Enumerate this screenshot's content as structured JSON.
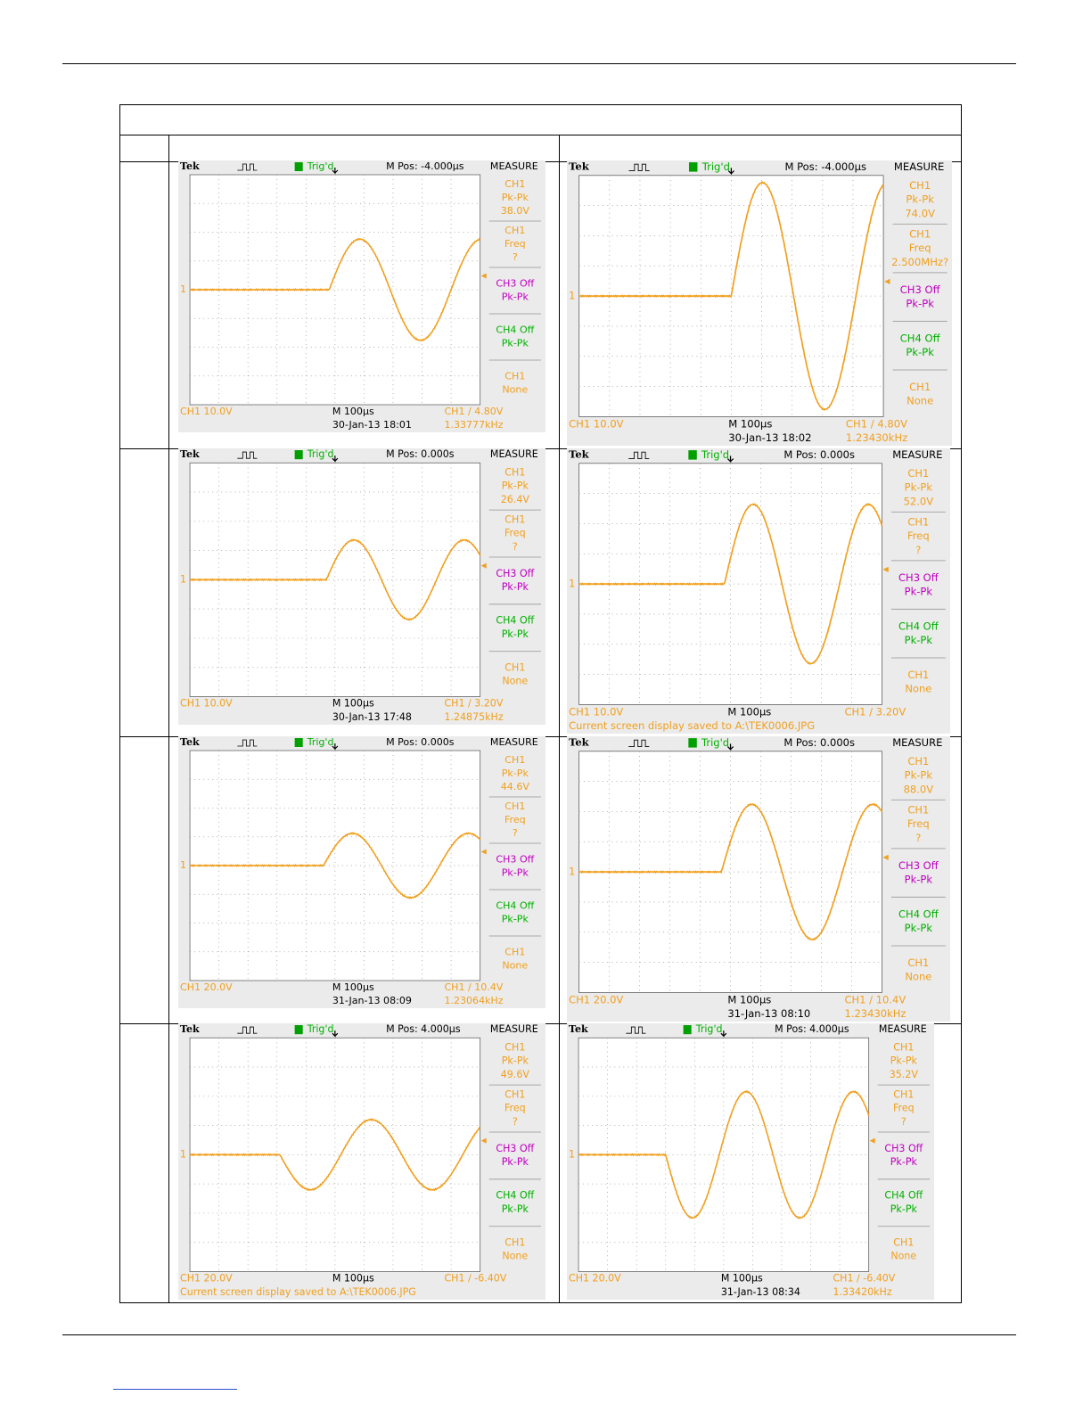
{
  "scopes": [
    {
      "brand": "Tek",
      "trigger": "Trig'd",
      "mpos": "M Pos: -4.000µs",
      "measure_title": "MEASURE",
      "marker": "1",
      "measurements": [
        [
          "CH1",
          "Pk-Pk",
          "38.0V"
        ],
        [
          "CH1",
          "Freq",
          "?"
        ],
        [
          "CH3 Off",
          "Pk-Pk"
        ],
        [
          "CH4 Off",
          "Pk-Pk"
        ],
        [
          "CH1",
          "None"
        ]
      ],
      "ch_scale": "CH1  10.0V",
      "timebase": "M 100µs",
      "trigger_level": "CH1 ∕ 4.80V",
      "date": "30-Jan-13 18:01",
      "freq": "1.33777kHz"
    },
    {
      "brand": "Tek",
      "trigger": "Trig'd",
      "mpos": "M Pos: -4.000µs",
      "measure_title": "MEASURE",
      "marker": "1",
      "measurements": [
        [
          "CH1",
          "Pk-Pk",
          "74.0V"
        ],
        [
          "CH1",
          "Freq",
          "2.500MHz?"
        ],
        [
          "CH3 Off",
          "Pk-Pk"
        ],
        [
          "CH4 Off",
          "Pk-Pk"
        ],
        [
          "CH1",
          "None"
        ]
      ],
      "ch_scale": "CH1  10.0V",
      "timebase": "M 100µs",
      "trigger_level": "CH1 ∕ 4.80V",
      "date": "30-Jan-13 18:02",
      "freq": "1.23430kHz"
    },
    {
      "brand": "Tek",
      "trigger": "Trig'd",
      "mpos": "M Pos: 0.000s",
      "measure_title": "MEASURE",
      "marker": "1",
      "measurements": [
        [
          "CH1",
          "Pk-Pk",
          "26.4V"
        ],
        [
          "CH1",
          "Freq",
          "?"
        ],
        [
          "CH3 Off",
          "Pk-Pk"
        ],
        [
          "CH4 Off",
          "Pk-Pk"
        ],
        [
          "CH1",
          "None"
        ]
      ],
      "ch_scale": "CH1  10.0V",
      "timebase": "M 100µs",
      "trigger_level": "CH1 ∕ 3.20V",
      "date": "30-Jan-13 17:48",
      "freq": "1.24875kHz"
    },
    {
      "brand": "Tek",
      "trigger": "Trig'd",
      "mpos": "M Pos: 0.000s",
      "measure_title": "MEASURE",
      "marker": "1",
      "measurements": [
        [
          "CH1",
          "Pk-Pk",
          "52.0V"
        ],
        [
          "CH1",
          "Freq",
          "?"
        ],
        [
          "CH3 Off",
          "Pk-Pk"
        ],
        [
          "CH4 Off",
          "Pk-Pk"
        ],
        [
          "CH1",
          "None"
        ]
      ],
      "ch_scale": "CH1  10.0V",
      "timebase": "M 100µs",
      "trigger_level": "CH1 ∕ 3.20V",
      "message": "Current screen display saved to A:\\TEK0006.JPG"
    },
    {
      "brand": "Tek",
      "trigger": "Trig'd",
      "mpos": "M Pos: 0.000s",
      "measure_title": "MEASURE",
      "marker": "1",
      "measurements": [
        [
          "CH1",
          "Pk-Pk",
          "44.6V"
        ],
        [
          "CH1",
          "Freq",
          "?"
        ],
        [
          "CH3 Off",
          "Pk-Pk"
        ],
        [
          "CH4 Off",
          "Pk-Pk"
        ],
        [
          "CH1",
          "None"
        ]
      ],
      "ch_scale": "CH1  20.0V",
      "timebase": "M 100µs",
      "trigger_level": "CH1 ∕ 10.4V",
      "date": "31-Jan-13 08:09",
      "freq": "1.23064kHz"
    },
    {
      "brand": "Tek",
      "trigger": "Trig'd",
      "mpos": "M Pos: 0.000s",
      "measure_title": "MEASURE",
      "marker": "1",
      "measurements": [
        [
          "CH1",
          "Pk-Pk",
          "88.0V"
        ],
        [
          "CH1",
          "Freq",
          "?"
        ],
        [
          "CH3 Off",
          "Pk-Pk"
        ],
        [
          "CH4 Off",
          "Pk-Pk"
        ],
        [
          "CH1",
          "None"
        ]
      ],
      "ch_scale": "CH1  20.0V",
      "timebase": "M 100µs",
      "trigger_level": "CH1 ∕ 10.4V",
      "date": "31-Jan-13 08:10",
      "freq": "1.23430kHz"
    },
    {
      "brand": "Tek",
      "trigger": "Trig'd",
      "mpos": "M Pos: 4.000µs",
      "measure_title": "MEASURE",
      "marker": "1",
      "measurements": [
        [
          "CH1",
          "Pk-Pk",
          "49.6V"
        ],
        [
          "CH1",
          "Freq",
          "?"
        ],
        [
          "CH3 Off",
          "Pk-Pk"
        ],
        [
          "CH4 Off",
          "Pk-Pk"
        ],
        [
          "CH1",
          "None"
        ]
      ],
      "ch_scale": "CH1  20.0V",
      "timebase": "M 100µs",
      "trigger_level": "CH1 ∕ -6.40V",
      "message": "Current screen display saved to A:\\TEK0006.JPG"
    },
    {
      "brand": "Tek",
      "trigger": "Trig'd",
      "mpos": "M Pos: 4.000µs",
      "measure_title": "MEASURE",
      "marker": "1",
      "measurements": [
        [
          "CH1",
          "Pk-Pk",
          "35.2V"
        ],
        [
          "CH1",
          "Freq",
          "?"
        ],
        [
          "CH3 Off",
          "Pk-Pk"
        ],
        [
          "CH4 Off",
          "Pk-Pk"
        ],
        [
          "CH1",
          "None"
        ]
      ],
      "ch_scale": "CH1  20.0V",
      "timebase": "M 100µs",
      "trigger_level": "CH1 ∕ -6.40V",
      "date": "31-Jan-13 08:34",
      "freq": "1.33420kHz"
    }
  ]
}
